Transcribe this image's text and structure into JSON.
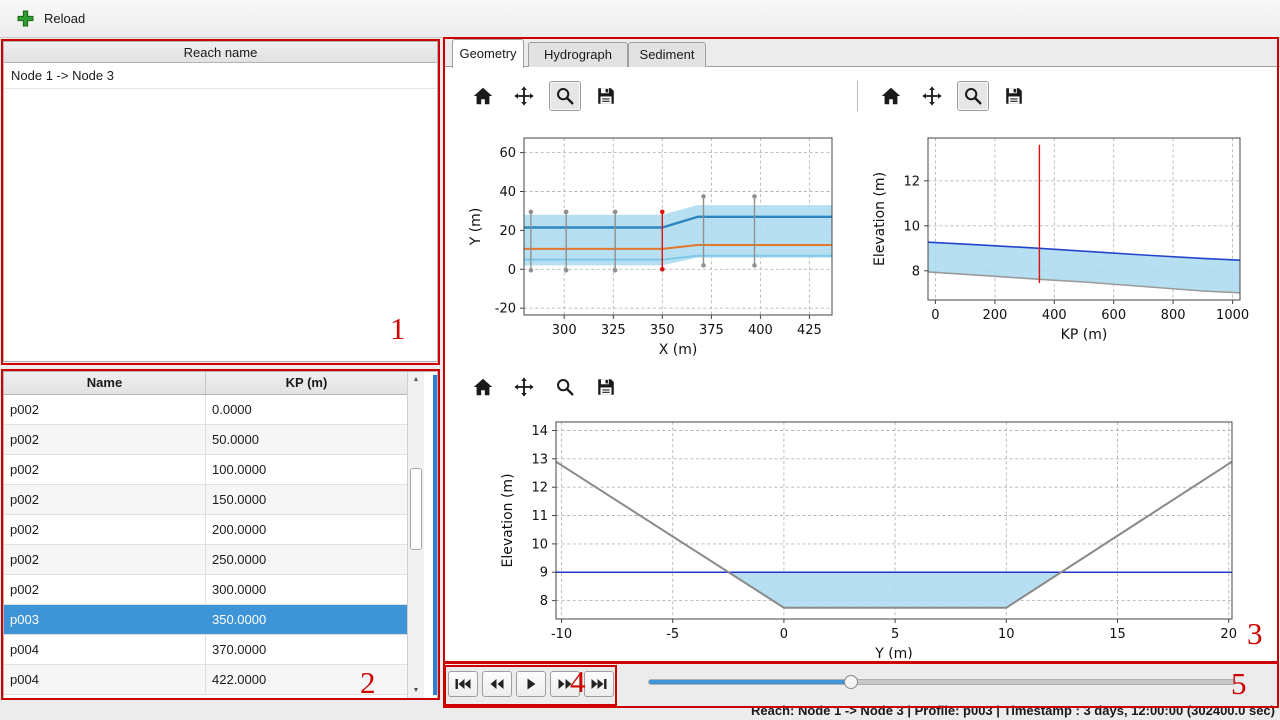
{
  "top_toolbar": {
    "reload_label": "Reload"
  },
  "reach_panel": {
    "header": "Reach name",
    "items": [
      "Node 1 -> Node 3"
    ]
  },
  "profile_table": {
    "columns": [
      "Name",
      "KP (m)"
    ],
    "rows": [
      [
        "p002",
        "0.0000"
      ],
      [
        "p002",
        "50.0000"
      ],
      [
        "p002",
        "100.0000"
      ],
      [
        "p002",
        "150.0000"
      ],
      [
        "p002",
        "200.0000"
      ],
      [
        "p002",
        "250.0000"
      ],
      [
        "p002",
        "300.0000"
      ],
      [
        "p003",
        "350.0000"
      ],
      [
        "p004",
        "370.0000"
      ],
      [
        "p004",
        "422.0000"
      ]
    ],
    "selected_index": 7
  },
  "tabs": [
    {
      "label": "Geometry",
      "active": true
    },
    {
      "label": "Hydrograph",
      "active": false
    },
    {
      "label": "Sediment",
      "active": false
    }
  ],
  "plot_toolbar": {
    "icons": [
      "home",
      "pan",
      "zoom",
      "save"
    ],
    "zoom_active_in": [
      "plan",
      "profile"
    ]
  },
  "playback": {
    "buttons": [
      "skip-to-start",
      "step-back",
      "play",
      "step-forward",
      "skip-to-end"
    ]
  },
  "slider": {
    "fraction": 0.344
  },
  "status_bar": {
    "text": "Reach: Node 1 -> Node 3 | Profile: p003 | Timestamp : 3 days, 12:00:00 (302400.0 sec)"
  },
  "annotations": {
    "labels": [
      "1",
      "2",
      "3",
      "4",
      "5"
    ],
    "color": "#cf0000"
  },
  "chart_data": [
    {
      "key": "plan",
      "type": "line",
      "xlabel": "X (m)",
      "ylabel": "Y (m)",
      "xlim": [
        279.5,
        436.5
      ],
      "ylim": [
        -23.5,
        67.5
      ],
      "xticks": [
        300,
        325,
        350,
        375,
        400,
        425
      ],
      "yticks": [
        -20,
        0,
        20,
        40,
        60
      ],
      "grid": true,
      "series": [
        {
          "name": "channel-area",
          "type": "area",
          "color": "#aedcf0",
          "opacity": 0.9,
          "points": [
            [
              279.5,
              28
            ],
            [
              350,
              28
            ],
            [
              368,
              33
            ],
            [
              436.5,
              33
            ],
            [
              436.5,
              6
            ],
            [
              368,
              6
            ],
            [
              350,
              2
            ],
            [
              279.5,
              2
            ]
          ]
        },
        {
          "name": "left-bank-line",
          "type": "line",
          "color": "#2e86c0",
          "width": 2.4,
          "points": [
            [
              279.5,
              21.5
            ],
            [
              350,
              21.5
            ],
            [
              368,
              27
            ],
            [
              436.5,
              27
            ]
          ]
        },
        {
          "name": "right-bank-line",
          "type": "line",
          "color": "#7ec8e8",
          "width": 2,
          "points": [
            [
              279.5,
              5
            ],
            [
              350,
              5
            ],
            [
              368,
              7
            ],
            [
              436.5,
              7
            ]
          ]
        },
        {
          "name": "thalweg-line",
          "type": "line",
          "color": "#e2772e",
          "width": 2,
          "points": [
            [
              279.5,
              10.5
            ],
            [
              350,
              10.5
            ],
            [
              368,
              12.5
            ],
            [
              436.5,
              12.5
            ]
          ]
        }
      ],
      "vlines": [
        {
          "x": 283,
          "y1": -0.5,
          "y2": 29.5,
          "color": "#909090",
          "marker": true
        },
        {
          "x": 301,
          "y1": -0.5,
          "y2": 29.5,
          "color": "#909090",
          "marker": true
        },
        {
          "x": 326,
          "y1": -0.5,
          "y2": 29.5,
          "color": "#909090",
          "marker": true
        },
        {
          "x": 350,
          "y1": 0,
          "y2": 29.5,
          "color": "#e01010",
          "marker": true
        },
        {
          "x": 371,
          "y1": 2,
          "y2": 37.5,
          "color": "#909090",
          "marker": true
        },
        {
          "x": 397,
          "y1": 2,
          "y2": 37.5,
          "color": "#909090",
          "marker": true
        }
      ]
    },
    {
      "key": "profile",
      "type": "line",
      "xlabel": "KP (m)",
      "ylabel": "Elevation (m)",
      "xlim": [
        -25,
        1025
      ],
      "ylim": [
        6.7,
        13.9
      ],
      "xticks": [
        0,
        200,
        400,
        600,
        800,
        1000
      ],
      "yticks": [
        8,
        10,
        12
      ],
      "grid": true,
      "series": [
        {
          "name": "water-area",
          "type": "area",
          "color": "#aedcf0",
          "opacity": 0.9,
          "points": [
            [
              -25,
              9.27
            ],
            [
              150,
              9.15
            ],
            [
              350,
              9.0
            ],
            [
              500,
              8.87
            ],
            [
              700,
              8.7
            ],
            [
              900,
              8.55
            ],
            [
              1025,
              8.47
            ],
            [
              1025,
              7.02
            ],
            [
              900,
              7.1
            ],
            [
              700,
              7.3
            ],
            [
              500,
              7.5
            ],
            [
              350,
              7.62
            ],
            [
              150,
              7.8
            ],
            [
              -25,
              7.95
            ]
          ]
        },
        {
          "name": "water-surface-line",
          "type": "line",
          "color": "#2244cc",
          "width": 1.6,
          "points": [
            [
              -25,
              9.27
            ],
            [
              150,
              9.15
            ],
            [
              350,
              9.0
            ],
            [
              500,
              8.87
            ],
            [
              700,
              8.7
            ],
            [
              900,
              8.55
            ],
            [
              1025,
              8.47
            ]
          ]
        },
        {
          "name": "bed-line",
          "type": "line",
          "color": "#9a9a9a",
          "width": 1.6,
          "points": [
            [
              -25,
              7.95
            ],
            [
              150,
              7.8
            ],
            [
              350,
              7.62
            ],
            [
              500,
              7.5
            ],
            [
              700,
              7.3
            ],
            [
              900,
              7.1
            ],
            [
              1025,
              7.02
            ]
          ]
        }
      ],
      "vlines": [
        {
          "x": 350,
          "y1": 7.45,
          "y2": 13.6,
          "color": "#e01010",
          "marker": false
        }
      ]
    },
    {
      "key": "cross",
      "type": "line",
      "xlabel": "Y (m)",
      "ylabel": "Elevation (m)",
      "xlim": [
        -10.25,
        20.15
      ],
      "ylim": [
        7.35,
        14.3
      ],
      "xticks": [
        -10,
        -5,
        0,
        5,
        10,
        15,
        20
      ],
      "yticks": [
        8,
        9,
        10,
        11,
        12,
        13,
        14
      ],
      "grid": true,
      "series": [
        {
          "name": "water-area",
          "type": "area",
          "color": "#aedcf0",
          "opacity": 0.9,
          "points": [
            [
              -2.5,
              9.0
            ],
            [
              0,
              7.75
            ],
            [
              10,
              7.75
            ],
            [
              12.48,
              9.0
            ]
          ]
        },
        {
          "name": "water-level-line",
          "type": "line",
          "color": "#2233cc",
          "width": 1.5,
          "points": [
            [
              -10.25,
              9.0
            ],
            [
              20.15,
              9.0
            ]
          ]
        },
        {
          "name": "bed-line",
          "type": "line",
          "color": "#8a8a8a",
          "width": 2,
          "points": [
            [
              -10.25,
              12.9
            ],
            [
              0,
              7.75
            ],
            [
              10,
              7.75
            ],
            [
              20.15,
              12.9
            ]
          ]
        }
      ],
      "vlines": []
    }
  ]
}
